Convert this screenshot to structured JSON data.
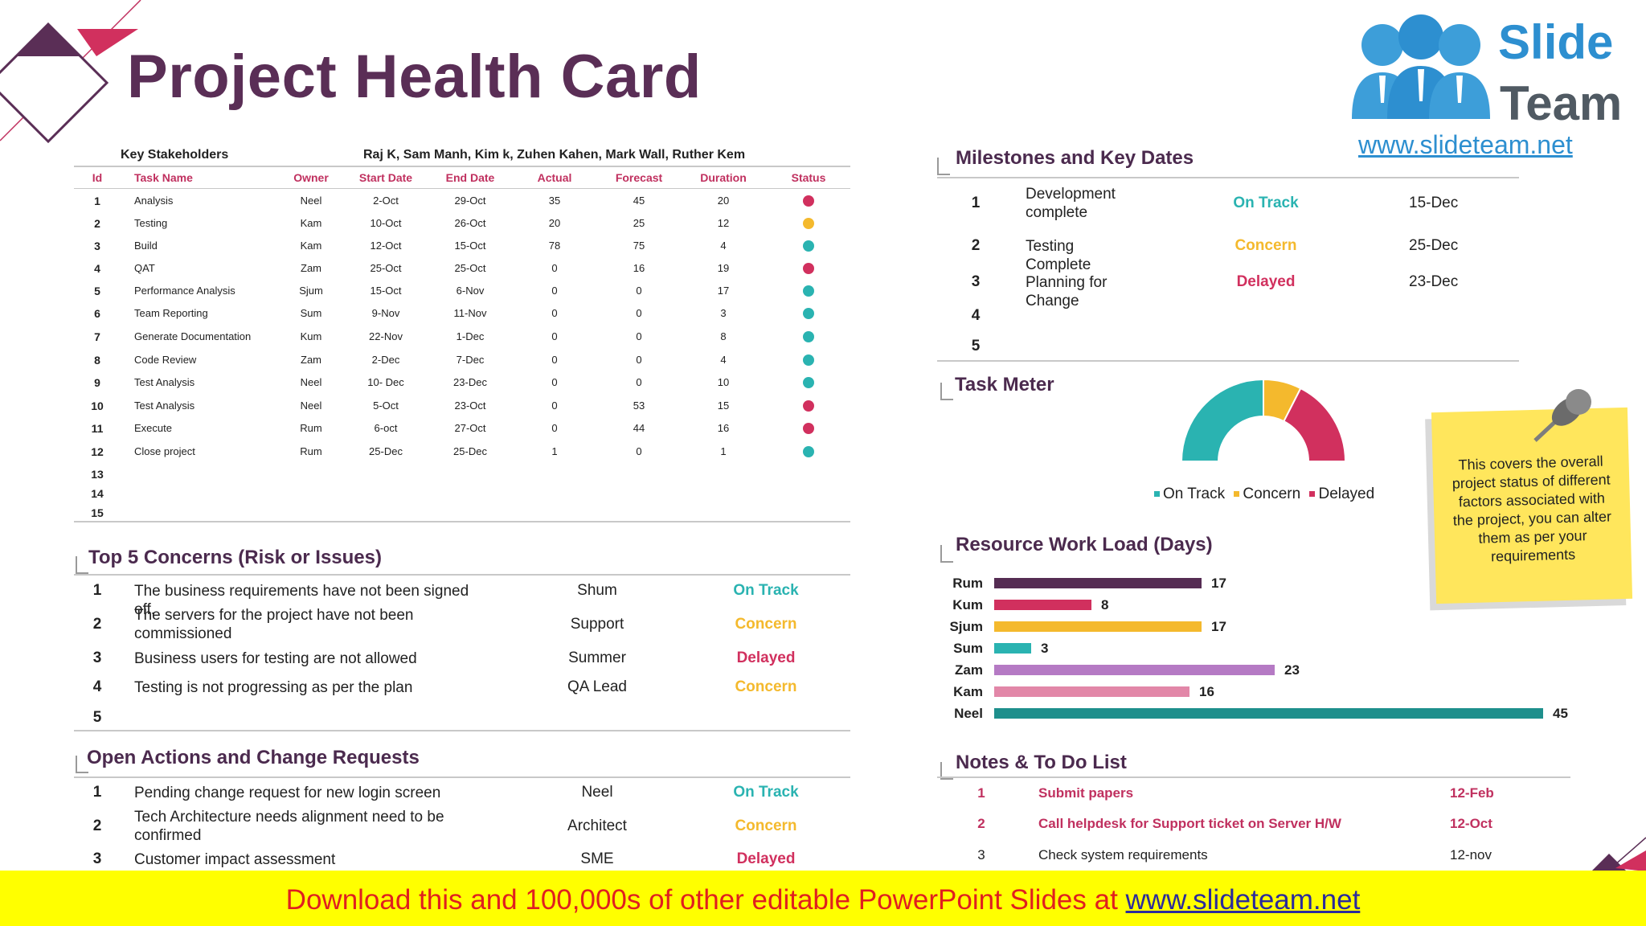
{
  "header": {
    "title": "Project Health Card"
  },
  "logo": {
    "line1": "Slide",
    "line2": "Team",
    "url": "www.slideteam.net"
  },
  "tasks": {
    "stakeholders_label": "Key Stakeholders",
    "stakeholders_value": "Raj K, Sam Manh, Kim k, Zuhen Kahen, Mark Wall, Ruther Kem",
    "columns": [
      "Id",
      "Task Name",
      "Owner",
      "Start Date",
      "End Date",
      "Actual",
      "Forecast",
      "Duration",
      "Status"
    ],
    "rows": [
      {
        "id": "1",
        "name": "Analysis",
        "owner": "Neel",
        "start": "2-Oct",
        "end": "29-Oct",
        "actual": "35",
        "forecast": "45",
        "duration": "20",
        "status": "red"
      },
      {
        "id": "2",
        "name": "Testing",
        "owner": "Kam",
        "start": "10-Oct",
        "end": "26-Oct",
        "actual": "20",
        "forecast": "25",
        "duration": "12",
        "status": "amber"
      },
      {
        "id": "3",
        "name": "Build",
        "owner": "Kam",
        "start": "12-Oct",
        "end": "15-Oct",
        "actual": "78",
        "forecast": "75",
        "duration": "4",
        "status": "teal"
      },
      {
        "id": "4",
        "name": "QAT",
        "owner": "Zam",
        "start": "25-Oct",
        "end": "25-Oct",
        "actual": "0",
        "forecast": "16",
        "duration": "19",
        "status": "red"
      },
      {
        "id": "5",
        "name": "Performance Analysis",
        "owner": "Sjum",
        "start": "15-Oct",
        "end": "6-Nov",
        "actual": "0",
        "forecast": "0",
        "duration": "17",
        "status": "teal"
      },
      {
        "id": "6",
        "name": "Team Reporting",
        "owner": "Sum",
        "start": "9-Nov",
        "end": "11-Nov",
        "actual": "0",
        "forecast": "0",
        "duration": "3",
        "status": "teal"
      },
      {
        "id": "7",
        "name": "Generate Documentation",
        "owner": "Kum",
        "start": "22-Nov",
        "end": "1-Dec",
        "actual": "0",
        "forecast": "0",
        "duration": "8",
        "status": "teal"
      },
      {
        "id": "8",
        "name": "Code Review",
        "owner": "Zam",
        "start": "2-Dec",
        "end": "7-Dec",
        "actual": "0",
        "forecast": "0",
        "duration": "4",
        "status": "teal"
      },
      {
        "id": "9",
        "name": "Test Analysis",
        "owner": "Neel",
        "start": "10- Dec",
        "end": "23-Dec",
        "actual": "0",
        "forecast": "0",
        "duration": "10",
        "status": "teal"
      },
      {
        "id": "10",
        "name": "Test Analysis",
        "owner": "Neel",
        "start": "5-Oct",
        "end": "23-Oct",
        "actual": "0",
        "forecast": "53",
        "duration": "15",
        "status": "red"
      },
      {
        "id": "11",
        "name": "Execute",
        "owner": "Rum",
        "start": "6-oct",
        "end": "27-Oct",
        "actual": "0",
        "forecast": "44",
        "duration": "16",
        "status": "red"
      },
      {
        "id": "12",
        "name": "Close project",
        "owner": "Rum",
        "start": "25-Dec",
        "end": "25-Dec",
        "actual": "1",
        "forecast": "0",
        "duration": "1",
        "status": "teal"
      },
      {
        "id": "13",
        "name": "",
        "owner": "",
        "start": "",
        "end": "",
        "actual": "",
        "forecast": "",
        "duration": "",
        "status": ""
      },
      {
        "id": "14",
        "name": "",
        "owner": "",
        "start": "",
        "end": "",
        "actual": "",
        "forecast": "",
        "duration": "",
        "status": ""
      },
      {
        "id": "15",
        "name": "",
        "owner": "",
        "start": "",
        "end": "",
        "actual": "",
        "forecast": "",
        "duration": "",
        "status": ""
      }
    ]
  },
  "concerns": {
    "title": "Top 5 Concerns (Risk or Issues)",
    "rows": [
      {
        "id": "1",
        "text": "The business requirements have not been signed off.",
        "owner": "Shum",
        "status": "On Track",
        "color": "teal"
      },
      {
        "id": "2",
        "text": "The servers for the project have not been commissioned",
        "owner": "Support",
        "status": "Concern",
        "color": "amber"
      },
      {
        "id": "3",
        "text": "Business users for testing are not allowed",
        "owner": "Summer",
        "status": "Delayed",
        "color": "red"
      },
      {
        "id": "4",
        "text": "Testing is not progressing as per the plan",
        "owner": "QA Lead",
        "status": "Concern",
        "color": "amber"
      },
      {
        "id": "5",
        "text": "",
        "owner": "",
        "status": "",
        "color": ""
      }
    ]
  },
  "actions": {
    "title": "Open Actions and Change Requests",
    "rows": [
      {
        "id": "1",
        "text": "Pending change request for new login screen",
        "owner": "Neel",
        "status": "On Track",
        "color": "teal"
      },
      {
        "id": "2",
        "text": "Tech Architecture needs alignment need to be confirmed",
        "owner": "Architect",
        "status": "Concern",
        "color": "amber"
      },
      {
        "id": "3",
        "text": "Customer impact assessment",
        "owner": "SME",
        "status": "Delayed",
        "color": "red"
      }
    ]
  },
  "milestones": {
    "title": "Milestones and Key Dates",
    "rows": [
      {
        "id": "1",
        "text": "Development complete",
        "status": "On Track",
        "color": "teal",
        "date": "15-Dec"
      },
      {
        "id": "2",
        "text": "Testing Complete",
        "status": "Concern",
        "color": "amber",
        "date": "25-Dec"
      },
      {
        "id": "3",
        "text": "Planning for Change",
        "status": "Delayed",
        "color": "red",
        "date": "23-Dec"
      },
      {
        "id": "4",
        "text": "",
        "status": "",
        "color": "",
        "date": ""
      },
      {
        "id": "5",
        "text": "",
        "status": "",
        "color": "",
        "date": ""
      }
    ]
  },
  "task_meter": {
    "title": "Task Meter",
    "legend": [
      "On Track",
      "Concern",
      "Delayed"
    ]
  },
  "workload": {
    "title": "Resource Work Load (Days)"
  },
  "notes": {
    "title": "Notes & To Do List",
    "rows": [
      {
        "id": "1",
        "text": "Submit papers",
        "date": "12-Feb",
        "highlight": true
      },
      {
        "id": "2",
        "text": "Call helpdesk for Support ticket on Server H/W",
        "date": "12-Oct",
        "highlight": true
      },
      {
        "id": "3",
        "text": "Check system requirements",
        "date": "12-nov",
        "highlight": false
      }
    ]
  },
  "sticky_note": {
    "text": "This covers the overall project status of different factors associated with the project, you can alter them as per your requirements"
  },
  "footer": {
    "text": "Download this and 100,000s of other editable PowerPoint Slides at ",
    "link": "www.slideteam.net"
  },
  "colors": {
    "teal": "#2ab3b1",
    "amber": "#f4b92d",
    "red": "#d1305e",
    "purple": "#5a2e56",
    "pink": "#c0305f"
  },
  "chart_data": [
    {
      "type": "pie",
      "title": "Task Meter",
      "variant": "half-donut",
      "categories": [
        "On Track",
        "Concern",
        "Delayed"
      ],
      "values": [
        50,
        15,
        35
      ],
      "colors": [
        "#2ab3b1",
        "#f4b92d",
        "#d1305e"
      ]
    },
    {
      "type": "bar",
      "orientation": "horizontal",
      "title": "Resource Work Load (Days)",
      "categories": [
        "Rum",
        "Kum",
        "Sjum",
        "Sum",
        "Zam",
        "Kam",
        "Neel"
      ],
      "values": [
        17,
        8,
        17,
        3,
        23,
        16,
        45
      ],
      "colors": [
        "#552c53",
        "#d1305e",
        "#f4b92d",
        "#2ab3b1",
        "#b57ac4",
        "#e287a8",
        "#1e8f8c"
      ],
      "xlim": [
        0,
        45
      ]
    }
  ]
}
